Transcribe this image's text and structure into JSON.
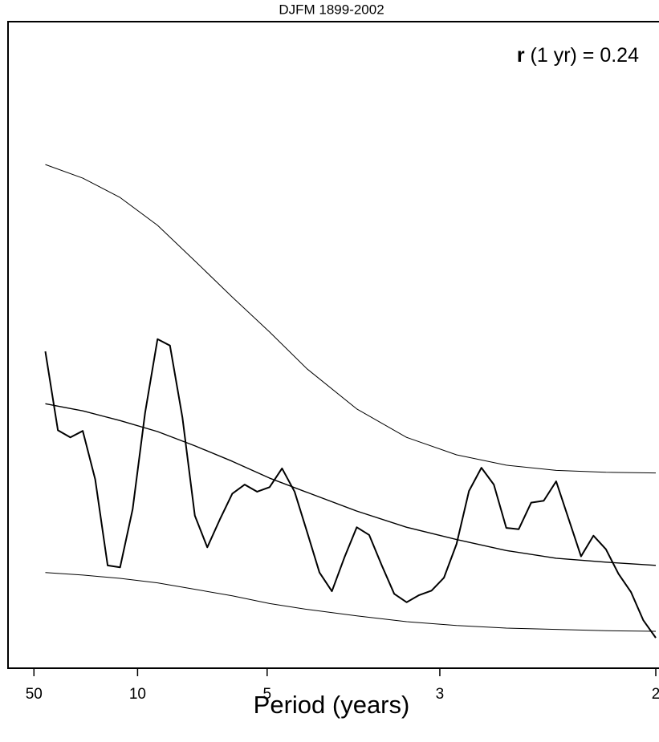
{
  "chart_data": {
    "type": "line",
    "title": "DJFM 1899-2002",
    "xlabel": "Period (years)",
    "annotation": {
      "symbol": "r",
      "text": "(1 yr) = 0.24"
    },
    "xlim": [
      0,
      0.5
    ],
    "ylim": [
      0,
      100
    ],
    "xticks": [
      {
        "value": 0.02,
        "label": "50"
      },
      {
        "value": 0.1,
        "label": "10"
      },
      {
        "value": 0.2,
        "label": "5"
      },
      {
        "value": 0.3333,
        "label": "3"
      },
      {
        "value": 0.5,
        "label": "2"
      }
    ],
    "series": [
      {
        "color": "#000000",
        "width": 2,
        "x": [
          0.0288,
          0.0385,
          0.0481,
          0.0577,
          0.0673,
          0.0769,
          0.0865,
          0.0962,
          0.1058,
          0.1154,
          0.125,
          0.1346,
          0.1442,
          0.1538,
          0.1635,
          0.1731,
          0.1827,
          0.1923,
          0.2019,
          0.2115,
          0.2212,
          0.2308,
          0.2404,
          0.25,
          0.2596,
          0.2692,
          0.2788,
          0.2885,
          0.2981,
          0.3077,
          0.3173,
          0.3269,
          0.3365,
          0.3462,
          0.3558,
          0.3654,
          0.375,
          0.3846,
          0.3942,
          0.4038,
          0.4135,
          0.4231,
          0.4327,
          0.4423,
          0.4519,
          0.4615,
          0.4712,
          0.4808,
          0.4904,
          0.5
        ],
        "values": [
          49.0,
          36.8,
          35.7,
          36.7,
          29.2,
          15.9,
          15.6,
          24.6,
          39.5,
          50.9,
          49.9,
          38.8,
          23.6,
          18.7,
          23.0,
          27.0,
          28.4,
          27.3,
          28.0,
          30.9,
          27.3,
          21.1,
          14.8,
          11.9,
          17.1,
          21.8,
          20.6,
          15.9,
          11.5,
          10.2,
          11.3,
          12.0,
          14.0,
          19.2,
          27.4,
          31.0,
          28.4,
          21.7,
          21.5,
          25.6,
          25.9,
          28.9,
          23.1,
          17.3,
          20.5,
          18.4,
          14.6,
          11.8,
          7.4,
          4.7
        ]
      },
      {
        "color": "#000000",
        "width": 1.4,
        "x": [
          0.0288,
          0.0577,
          0.0865,
          0.1154,
          0.1442,
          0.1731,
          0.2019,
          0.2308,
          0.2692,
          0.3077,
          0.3462,
          0.3846,
          0.4231,
          0.4615,
          0.5
        ],
        "values": [
          40.9,
          39.8,
          38.3,
          36.6,
          34.4,
          32.0,
          29.4,
          27.2,
          24.3,
          21.8,
          19.9,
          18.2,
          17.0,
          16.4,
          15.9
        ]
      },
      {
        "color": "#000000",
        "width": 1,
        "x": [
          0.0288,
          0.0577,
          0.0865,
          0.1154,
          0.1442,
          0.1731,
          0.2019,
          0.2308,
          0.2692,
          0.3077,
          0.3462,
          0.3846,
          0.4231,
          0.4615,
          0.5
        ],
        "values": [
          77.9,
          75.8,
          72.8,
          68.5,
          63.0,
          57.4,
          52.0,
          46.3,
          40.1,
          35.7,
          33.0,
          31.4,
          30.6,
          30.3,
          30.2
        ]
      },
      {
        "color": "#000000",
        "width": 1,
        "x": [
          0.0288,
          0.0577,
          0.0865,
          0.1154,
          0.1442,
          0.1731,
          0.2019,
          0.2308,
          0.2692,
          0.3077,
          0.3462,
          0.3846,
          0.4231,
          0.4615,
          0.5
        ],
        "values": [
          14.8,
          14.4,
          13.9,
          13.2,
          12.2,
          11.2,
          10.0,
          9.1,
          8.1,
          7.2,
          6.6,
          6.2,
          6.0,
          5.8,
          5.7
        ]
      }
    ]
  }
}
